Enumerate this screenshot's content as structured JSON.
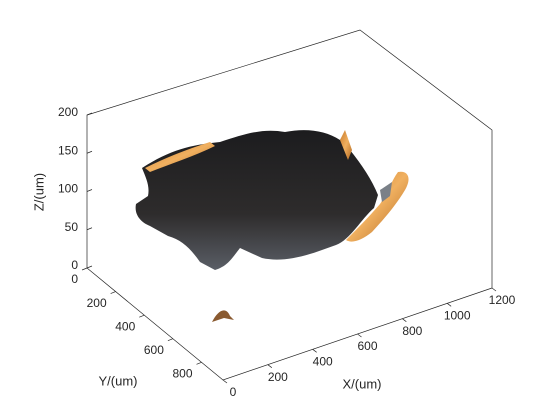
{
  "chart_data": {
    "type": "surface3d",
    "xlabel": "X/(um)",
    "ylabel": "Y/(um)",
    "zlabel": "Z/(um)",
    "xlim": [
      0,
      1200
    ],
    "ylim": [
      0,
      950
    ],
    "zlim": [
      0,
      200
    ],
    "xticks": [
      0,
      200,
      400,
      600,
      800,
      1000,
      1200
    ],
    "yticks": [
      0,
      200,
      400,
      600,
      800
    ],
    "zticks": [
      0,
      50,
      100,
      150,
      200
    ]
  }
}
